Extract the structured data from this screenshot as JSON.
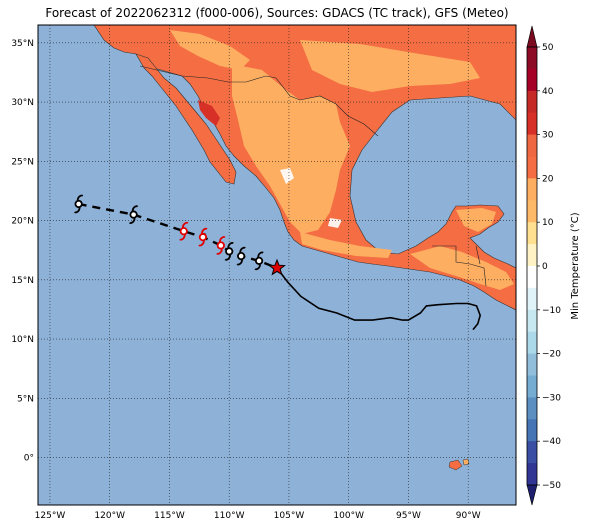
{
  "title": "Forecast of 2022062312 (f000-006), Sources: GDACS (TC track), GFS (Meteo)",
  "map": {
    "lon_range": [
      -126,
      -86
    ],
    "lat_range": [
      -4,
      36.5
    ],
    "lon_ticks": [
      {
        "value": -125,
        "label": "125°W"
      },
      {
        "value": -120,
        "label": "120°W"
      },
      {
        "value": -115,
        "label": "115°W"
      },
      {
        "value": -110,
        "label": "110°W"
      },
      {
        "value": -105,
        "label": "105°W"
      },
      {
        "value": -100,
        "label": "100°W"
      },
      {
        "value": -95,
        "label": "95°W"
      },
      {
        "value": -90,
        "label": "90°W"
      }
    ],
    "lat_ticks": [
      {
        "value": 35,
        "label": "35°N"
      },
      {
        "value": 30,
        "label": "30°N"
      },
      {
        "value": 25,
        "label": "25°N"
      },
      {
        "value": 20,
        "label": "20°N"
      },
      {
        "value": 15,
        "label": "15°N"
      },
      {
        "value": 10,
        "label": "10°N"
      },
      {
        "value": 5,
        "label": "5°N"
      },
      {
        "value": 0,
        "label": "0°"
      }
    ],
    "gridlines": true,
    "ocean_color": "#8eb1d8"
  },
  "track": {
    "current_position": {
      "lon": -106,
      "lat": 16
    },
    "coast_track": [
      [
        -106,
        16
      ],
      [
        -105.1,
        14.8
      ],
      [
        -104,
        13.6
      ],
      [
        -102.5,
        12.6
      ],
      [
        -101,
        12.2
      ],
      [
        -99.5,
        11.6
      ],
      [
        -98,
        11.6
      ],
      [
        -96.5,
        11.8
      ],
      [
        -95.5,
        11.6
      ],
      [
        -95,
        11.6
      ],
      [
        -94,
        12.2
      ],
      [
        -93.5,
        12.8
      ],
      [
        -92.5,
        12.9
      ],
      [
        -91,
        13
      ],
      [
        -90,
        13
      ],
      [
        -89.3,
        12.8
      ],
      [
        -89,
        12
      ],
      [
        -89.2,
        11.3
      ],
      [
        -89.6,
        10.8
      ]
    ],
    "forecast_track": [
      [
        -122.6,
        21.4
      ],
      [
        -118,
        20.5
      ],
      [
        -113.8,
        19.1
      ],
      [
        -112.2,
        18.6
      ],
      [
        -110.7,
        17.9
      ],
      [
        -110,
        17.4
      ],
      [
        -109,
        17
      ],
      [
        -107.5,
        16.6
      ],
      [
        -106,
        16
      ]
    ],
    "storm_symbols": [
      {
        "lon": -122.6,
        "lat": 21.4,
        "color": "#000000"
      },
      {
        "lon": -118,
        "lat": 20.5,
        "color": "#000000"
      },
      {
        "lon": -113.8,
        "lat": 19.1,
        "color": "#e00000"
      },
      {
        "lon": -112.2,
        "lat": 18.6,
        "color": "#e00000"
      },
      {
        "lon": -110.7,
        "lat": 17.9,
        "color": "#e00000"
      },
      {
        "lon": -110,
        "lat": 17.4,
        "color": "#000000"
      },
      {
        "lon": -109,
        "lat": 17,
        "color": "#000000"
      },
      {
        "lon": -107.5,
        "lat": 16.6,
        "color": "#000000"
      }
    ]
  },
  "colorbar": {
    "label": "Min Temperature (°C)",
    "ticks": [
      "50",
      "40",
      "30",
      "20",
      "10",
      "0",
      "−10",
      "−20",
      "−30",
      "−40",
      "−50"
    ],
    "bands": [
      {
        "from": 45,
        "to": 50,
        "color": "#8e0b25"
      },
      {
        "from": 40,
        "to": 45,
        "color": "#a50026"
      },
      {
        "from": 35,
        "to": 40,
        "color": "#c62a26"
      },
      {
        "from": 30,
        "to": 35,
        "color": "#d73027"
      },
      {
        "from": 25,
        "to": 30,
        "color": "#ef6740"
      },
      {
        "from": 20,
        "to": 25,
        "color": "#f46d43"
      },
      {
        "from": 15,
        "to": 20,
        "color": "#fdae61"
      },
      {
        "from": 10,
        "to": 15,
        "color": "#fdb868"
      },
      {
        "from": 5,
        "to": 10,
        "color": "#fee090"
      },
      {
        "from": 0,
        "to": 5,
        "color": "#fff2c4"
      },
      {
        "from": -5,
        "to": 0,
        "color": "#ffffff"
      },
      {
        "from": -10,
        "to": -5,
        "color": "#e0f3f8"
      },
      {
        "from": -15,
        "to": -10,
        "color": "#c8e8f1"
      },
      {
        "from": -20,
        "to": -15,
        "color": "#abd9e9"
      },
      {
        "from": -25,
        "to": -20,
        "color": "#91bfdb"
      },
      {
        "from": -30,
        "to": -25,
        "color": "#74add1"
      },
      {
        "from": -35,
        "to": -30,
        "color": "#5b8fc2"
      },
      {
        "from": -40,
        "to": -35,
        "color": "#4575b4"
      },
      {
        "from": -45,
        "to": -40,
        "color": "#3a4ea3"
      },
      {
        "from": -50,
        "to": -45,
        "color": "#313695"
      }
    ]
  }
}
